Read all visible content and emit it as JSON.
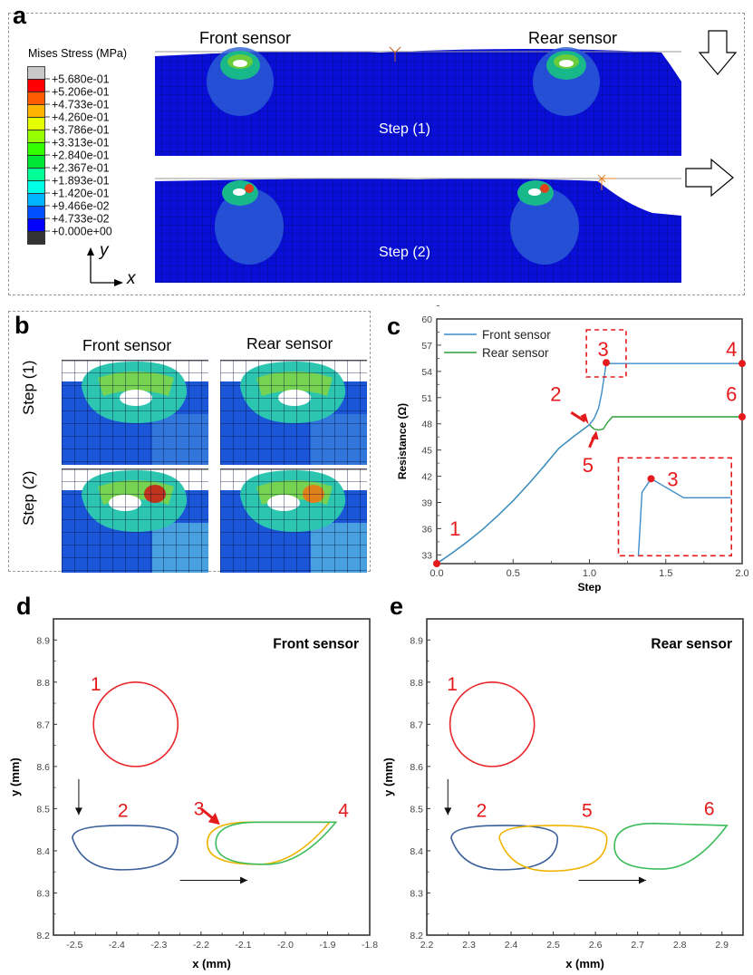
{
  "figure": {
    "panel_a": {
      "letter": "a",
      "legend_title": "Mises Stress (MPa)",
      "legend_levels": [
        "+5.680e-01",
        "+5.206e-01",
        "+4.733e-01",
        "+4.260e-01",
        "+3.786e-01",
        "+3.313e-01",
        "+2.840e-01",
        "+2.367e-01",
        "+1.893e-01",
        "+1.420e-01",
        "+9.466e-02",
        "+4.733e-02",
        "+0.000e+00"
      ],
      "legend_colors": [
        "#c8c8c8",
        "#ff0000",
        "#ff5a00",
        "#ffb400",
        "#e6ff00",
        "#96ff00",
        "#32ff00",
        "#00e632",
        "#00ff96",
        "#00ffe6",
        "#00b4ff",
        "#0050ff",
        "#0000ff",
        "#333333"
      ],
      "front_label": "Front sensor",
      "rear_label": "Rear sensor",
      "step1_label": "Step (1)",
      "step2_label": "Step (2)",
      "axis_y": "y",
      "axis_x": "x",
      "arrow1": "down-arrow-icon",
      "arrow2": "right-arrow-icon"
    },
    "panel_b": {
      "letter": "b",
      "front_label": "Front sensor",
      "rear_label": "Rear sensor",
      "row1_label": "Step (1)",
      "row2_label": "Step (2)"
    },
    "panel_c": {
      "letter": "c"
    },
    "panel_d": {
      "letter": "d"
    },
    "panel_e": {
      "letter": "e"
    }
  },
  "chart_data": [
    {
      "id": "c",
      "type": "line",
      "title": "",
      "xlabel": "Step",
      "ylabel": "Resistance (Ω)",
      "xlim": [
        0,
        2.0
      ],
      "ylim": [
        32,
        60
      ],
      "xticks": [
        "0.0",
        "0.5",
        "1.0",
        "1.5",
        "2.0"
      ],
      "yticks": [
        "33",
        "36",
        "39",
        "42",
        "45",
        "48",
        "51",
        "54",
        "57",
        "60"
      ],
      "legend": [
        "Front sensor",
        "Rear sensor"
      ],
      "legend_position": "top-left",
      "series": [
        {
          "name": "Front sensor",
          "color": "#3d8bc9",
          "x": [
            0,
            0.1,
            0.2,
            0.3,
            0.4,
            0.5,
            0.6,
            0.7,
            0.8,
            0.9,
            1.0,
            1.03,
            1.06,
            1.08,
            1.1,
            1.11,
            1.12,
            1.5,
            2.0
          ],
          "y": [
            32,
            33.2,
            34.5,
            35.9,
            37.5,
            39.2,
            41.1,
            43.1,
            45.2,
            46.6,
            47.9,
            48.6,
            49.8,
            51.5,
            53.8,
            55.0,
            54.9,
            54.9,
            54.9
          ]
        },
        {
          "name": "Rear sensor",
          "color": "#2e9e3a",
          "x": [
            0,
            0.1,
            0.2,
            0.3,
            0.4,
            0.5,
            0.6,
            0.7,
            0.8,
            0.9,
            1.0,
            1.03,
            1.06,
            1.09,
            1.12,
            1.15,
            1.5,
            2.0
          ],
          "y": [
            32,
            33.2,
            34.5,
            35.9,
            37.5,
            39.2,
            41.1,
            43.1,
            45.2,
            46.6,
            47.9,
            47.4,
            47.3,
            47.4,
            48.2,
            48.8,
            48.8,
            48.8
          ]
        }
      ],
      "markers": [
        {
          "label": "1",
          "x": 0,
          "y": 32
        },
        {
          "label": "3",
          "x": 1.11,
          "y": 55.0
        },
        {
          "label": "4",
          "x": 2.0,
          "y": 54.9
        },
        {
          "label": "6",
          "x": 2.0,
          "y": 48.8
        }
      ],
      "annotations": [
        {
          "label": "2",
          "x": 1.0,
          "y": 47.9,
          "arrow": true
        },
        {
          "label": "5",
          "x": 1.05,
          "y": 47.3,
          "arrow": true
        },
        {
          "label": "3",
          "inset": true
        }
      ]
    },
    {
      "id": "d",
      "type": "line",
      "title": "Front sensor",
      "xlabel": "x (mm)",
      "ylabel": "y (mm)",
      "xlim": [
        -2.55,
        -1.8
      ],
      "ylim": [
        8.2,
        8.95
      ],
      "xticks": [
        "-2.5",
        "-2.4",
        "-2.3",
        "-2.2",
        "-2.1",
        "-2.0",
        "-1.9",
        "-1.8"
      ],
      "yticks": [
        "8.2",
        "8.3",
        "8.4",
        "8.5",
        "8.6",
        "8.7",
        "8.8",
        "8.9"
      ],
      "shapes": [
        {
          "label": "1",
          "color": "#e8262b",
          "kind": "circle",
          "cx": -2.355,
          "cy": 8.7,
          "r": 0.1
        },
        {
          "label": "2",
          "color": "#3a5f9a",
          "kind": "drop-left",
          "xmin": -2.505,
          "xmax": -2.255,
          "ytop": 8.46,
          "ybot": 8.355,
          "tip_y": 8.43
        },
        {
          "label": "3",
          "color": "#f0b400",
          "kind": "drop-right",
          "xmin": -2.185,
          "xmax": -1.895,
          "ytop": 8.468,
          "ybot": 8.368,
          "tip_y": 8.468
        },
        {
          "label": "4",
          "color": "#3cbc5a",
          "kind": "drop-right",
          "xmin": -2.165,
          "xmax": -1.88,
          "ytop": 8.468,
          "ybot": 8.368,
          "tip_y": 8.468
        }
      ],
      "arrows": [
        {
          "from": [
            -2.49,
            8.57
          ],
          "to": [
            -2.49,
            8.485
          ]
        },
        {
          "from": [
            -2.25,
            8.33
          ],
          "to": [
            -2.09,
            8.33
          ]
        }
      ]
    },
    {
      "id": "e",
      "type": "line",
      "title": "Rear sensor",
      "xlabel": "x (mm)",
      "ylabel": "y (mm)",
      "xlim": [
        2.2,
        2.95
      ],
      "ylim": [
        8.2,
        8.95
      ],
      "xticks": [
        "2.2",
        "2.3",
        "2.4",
        "2.5",
        "2.6",
        "2.7",
        "2.8",
        "2.9"
      ],
      "yticks": [
        "8.2",
        "8.3",
        "8.4",
        "8.5",
        "8.6",
        "8.7",
        "8.8",
        "8.9"
      ],
      "shapes": [
        {
          "label": "1",
          "color": "#e8262b",
          "kind": "circle",
          "cx": 2.355,
          "cy": 8.7,
          "r": 0.1
        },
        {
          "label": "2",
          "color": "#3a5f9a",
          "kind": "drop-left",
          "xmin": 2.258,
          "xmax": 2.51,
          "ytop": 8.46,
          "ybot": 8.355,
          "tip_y": 8.43
        },
        {
          "label": "5",
          "color": "#f0b400",
          "kind": "drop-left",
          "xmin": 2.372,
          "xmax": 2.627,
          "ytop": 8.46,
          "ybot": 8.352,
          "tip_y": 8.43
        },
        {
          "label": "6",
          "color": "#3cbc5a",
          "kind": "drop-right",
          "xmin": 2.645,
          "xmax": 2.912,
          "ytop": 8.465,
          "ybot": 8.357,
          "tip_y": 8.46
        }
      ],
      "arrows": [
        {
          "from": [
            2.25,
            8.57
          ],
          "to": [
            2.25,
            8.485
          ]
        },
        {
          "from": [
            2.56,
            8.33
          ],
          "to": [
            2.72,
            8.33
          ]
        }
      ]
    }
  ]
}
